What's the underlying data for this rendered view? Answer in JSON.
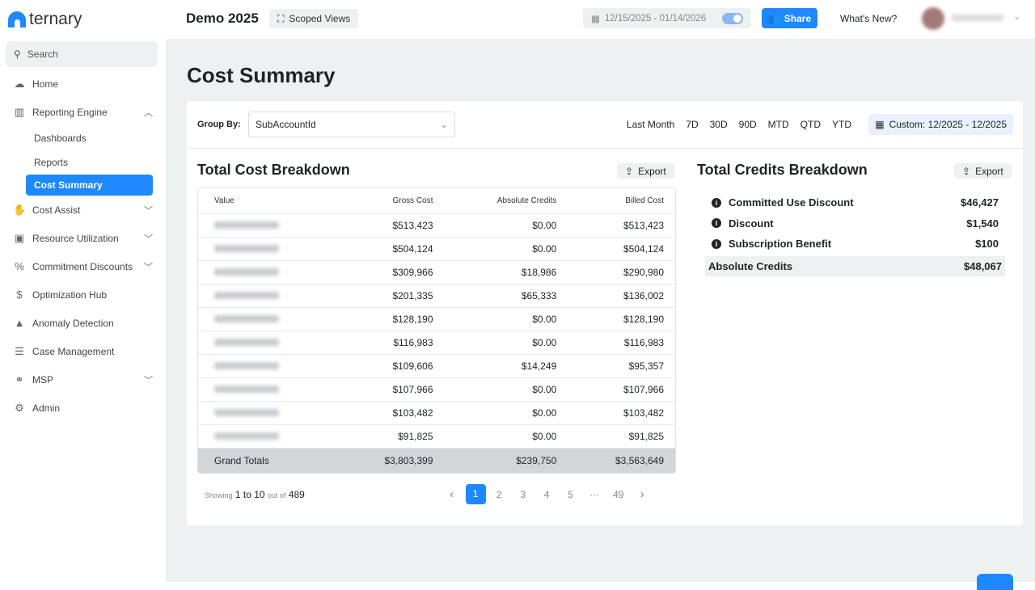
{
  "app": {
    "brand": "ternary",
    "workspace": "Demo 2025",
    "scoped_views": "Scoped Views",
    "date_range": "12/15/2025 - 01/14/2026",
    "share": "Share",
    "whats_new": "What's New?"
  },
  "sidebar": {
    "search": "Search",
    "items": [
      {
        "label": "Home",
        "icon": "cloud-icon"
      },
      {
        "label": "Reporting Engine",
        "icon": "chart-icon",
        "expanded": true,
        "children": [
          "Dashboards",
          "Reports",
          "Cost Summary"
        ]
      },
      {
        "label": "Cost Assist",
        "icon": "hand-coin-icon"
      },
      {
        "label": "Resource Utilization",
        "icon": "chip-icon"
      },
      {
        "label": "Commitment Discounts",
        "icon": "percent-icon"
      },
      {
        "label": "Optimization Hub",
        "icon": "dollar-circle-icon"
      },
      {
        "label": "Anomaly Detection",
        "icon": "warning-icon"
      },
      {
        "label": "Case Management",
        "icon": "list-icon"
      },
      {
        "label": "MSP",
        "icon": "handshake-icon"
      },
      {
        "label": "Admin",
        "icon": "gears-icon"
      }
    ]
  },
  "page": {
    "title": "Cost Summary",
    "group_by_label": "Group By:",
    "group_by_value": "SubAccountId",
    "ranges": [
      "Last Month",
      "7D",
      "30D",
      "90D",
      "MTD",
      "QTD",
      "YTD"
    ],
    "custom_range": "Custom: 12/2025 - 12/2025"
  },
  "cost": {
    "title": "Total Cost Breakdown",
    "export": "Export",
    "columns": [
      "Value",
      "Gross Cost",
      "Absolute Credits",
      "Billed Cost"
    ],
    "rows": [
      [
        "$513,423",
        "$0.00",
        "$513,423"
      ],
      [
        "$504,124",
        "$0.00",
        "$504,124"
      ],
      [
        "$309,966",
        "$18,986",
        "$290,980"
      ],
      [
        "$201,335",
        "$65,333",
        "$136,002"
      ],
      [
        "$128,190",
        "$0.00",
        "$128,190"
      ],
      [
        "$116,983",
        "$0.00",
        "$116,983"
      ],
      [
        "$109,606",
        "$14,249",
        "$95,357"
      ],
      [
        "$107,966",
        "$0.00",
        "$107,966"
      ],
      [
        "$103,482",
        "$0.00",
        "$103,482"
      ],
      [
        "$91,825",
        "$0.00",
        "$91,825"
      ]
    ],
    "totals": {
      "label": "Grand Totals",
      "gross": "$3,803,399",
      "credits": "$239,750",
      "billed": "$3,563,649"
    }
  },
  "pagination": {
    "showing": "Showing",
    "from_to": "1 to 10",
    "out_of": "out of",
    "total": "489",
    "pages": [
      "1",
      "2",
      "3",
      "4",
      "5",
      "···",
      "49"
    ],
    "current": "1"
  },
  "credits": {
    "title": "Total Credits Breakdown",
    "export": "Export",
    "items": [
      {
        "label": "Committed Use Discount",
        "value": "$46,427"
      },
      {
        "label": "Discount",
        "value": "$1,540"
      },
      {
        "label": "Subscription Benefit",
        "value": "$100"
      }
    ],
    "total_label": "Absolute Credits",
    "total_value": "$48,067"
  },
  "colors": {
    "accent": "#1e88ff",
    "background": "#eef1f2"
  }
}
